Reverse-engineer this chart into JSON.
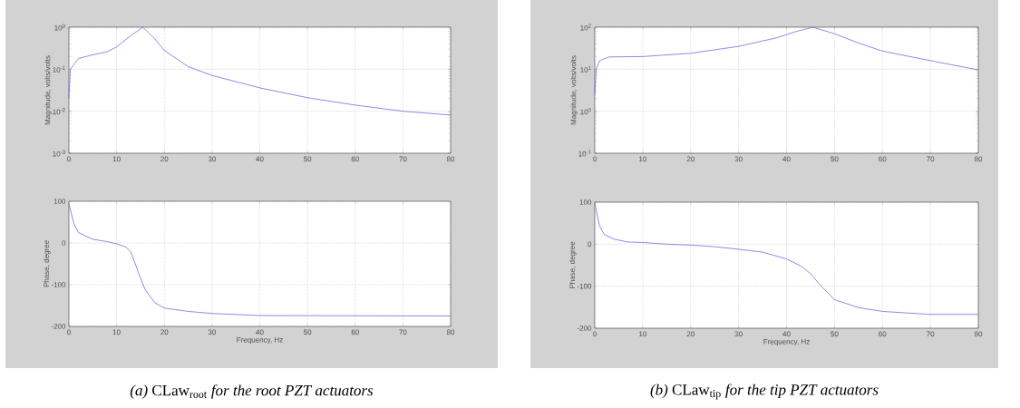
{
  "chart_data": [
    {
      "type": "line",
      "ylabel": "Magnitude, volts/volts",
      "log": true,
      "grid": true,
      "color": "#6f6fe0",
      "x": [
        0,
        0.3,
        2,
        5,
        8,
        10,
        13,
        15.5,
        18,
        20,
        25,
        30,
        40,
        50,
        60,
        70,
        80
      ],
      "values": [
        0.021,
        0.1,
        0.18,
        0.22,
        0.26,
        0.34,
        0.63,
        1.0,
        0.53,
        0.28,
        0.115,
        0.071,
        0.036,
        0.021,
        0.014,
        0.01,
        0.0081
      ],
      "xlim": [
        0,
        80
      ],
      "xticks": [
        0,
        10,
        20,
        30,
        40,
        50,
        60,
        70,
        80
      ],
      "ylim": [
        0.001,
        1
      ],
      "yticks": [
        {
          "value": 0.001,
          "label": "10$^{-3}$"
        },
        {
          "value": 0.01,
          "label": "10$^{-2}$"
        },
        {
          "value": 0.1,
          "label": "10$^{-1}$"
        },
        {
          "value": 1,
          "label": "10$^{0}$"
        }
      ]
    },
    {
      "type": "line",
      "ylabel": "Phase, degree",
      "xlabel": "Frequency, Hz",
      "grid": true,
      "color": "#6f6fe0",
      "x": [
        0,
        1,
        2,
        5,
        8,
        10,
        12,
        13,
        14,
        15,
        16,
        18,
        20,
        25,
        30,
        40,
        80
      ],
      "values": [
        94,
        48,
        25,
        9,
        3,
        -2,
        -10,
        -22,
        -53,
        -84,
        -112,
        -143,
        -156,
        -164,
        -169,
        -174,
        -175
      ],
      "xlim": [
        0,
        80
      ],
      "xticks": [
        0,
        10,
        20,
        30,
        40,
        50,
        60,
        70,
        80
      ],
      "ylim": [
        -200,
        100
      ],
      "yticks": [
        -200,
        -100,
        0,
        100
      ],
      "annotations": [
        "*(a)* CLaw$_{root}$ *for the root PZT actuators*"
      ]
    },
    {
      "type": "line",
      "ylabel": "Magnitude, volts/volts",
      "log": true,
      "grid": true,
      "color": "#6f6fe0",
      "x": [
        0,
        0.3,
        1,
        3,
        10,
        20,
        30,
        38,
        42,
        45.5,
        50,
        55,
        60,
        70,
        80
      ],
      "values": [
        2.5,
        10,
        16,
        19.6,
        20,
        24,
        35,
        56,
        79,
        100,
        70,
        42,
        27,
        16,
        9.6
      ],
      "xlim": [
        0,
        80
      ],
      "xticks": [
        0,
        10,
        20,
        30,
        40,
        50,
        60,
        70,
        80
      ],
      "ylim": [
        0.1,
        100
      ],
      "yticks": [
        {
          "value": 0.1,
          "label": "10$^{-1}$"
        },
        {
          "value": 1,
          "label": "10$^{0}$"
        },
        {
          "value": 10,
          "label": "10$^{1}$"
        },
        {
          "value": 100,
          "label": "10$^{2}$"
        }
      ]
    },
    {
      "type": "line",
      "ylabel": "Phase, degree",
      "xlabel": "Frequency, Hz",
      "grid": true,
      "color": "#6f6fe0",
      "x": [
        0,
        1,
        2,
        4,
        7,
        10,
        15,
        20,
        25,
        30,
        35,
        40,
        43,
        45,
        47,
        50,
        55,
        60,
        70,
        80
      ],
      "values": [
        97,
        43,
        23,
        12,
        5,
        4,
        0,
        -2,
        -6,
        -12,
        -19,
        -35,
        -52,
        -70,
        -97,
        -132,
        -151,
        -160,
        -167,
        -167
      ],
      "xlim": [
        0,
        80
      ],
      "xticks": [
        0,
        10,
        20,
        30,
        40,
        50,
        60,
        70,
        80
      ],
      "ylim": [
        -200,
        100
      ],
      "yticks": [
        -200,
        -100,
        0,
        100
      ],
      "annotations": [
        "*(b)* CLaw$_{tip}$ *for the tip PZT actuators*"
      ]
    }
  ]
}
